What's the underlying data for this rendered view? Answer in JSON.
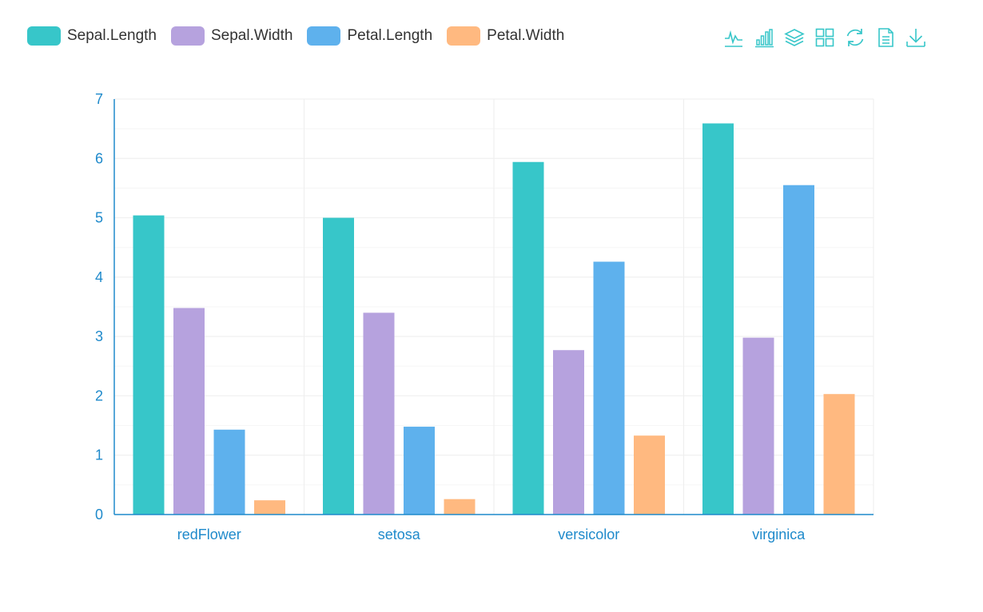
{
  "colors": {
    "axis": "#1f8acb",
    "grid": "#eeeeee",
    "gridMinor": "#f5f5f5",
    "toolbox": "#37c6c9",
    "legendText": "#333333"
  },
  "toolbox": [
    {
      "name": "line-chart-icon"
    },
    {
      "name": "bar-chart-icon"
    },
    {
      "name": "stack-icon"
    },
    {
      "name": "tiled-icon"
    },
    {
      "name": "restore-icon"
    },
    {
      "name": "data-view-icon"
    },
    {
      "name": "save-image-icon"
    }
  ],
  "chart_data": {
    "type": "bar",
    "categories": [
      "redFlower",
      "setosa",
      "versicolor",
      "virginica"
    ],
    "series": [
      {
        "name": "Sepal.Length",
        "color": "#37c6c9",
        "values": [
          5.04,
          5.0,
          5.94,
          6.59
        ]
      },
      {
        "name": "Sepal.Width",
        "color": "#b6a2de",
        "values": [
          3.48,
          3.4,
          2.77,
          2.98
        ]
      },
      {
        "name": "Petal.Length",
        "color": "#5eb1ed",
        "values": [
          1.43,
          1.48,
          4.26,
          5.55
        ]
      },
      {
        "name": "Petal.Width",
        "color": "#ffb980",
        "values": [
          0.24,
          0.26,
          1.33,
          2.03
        ]
      }
    ],
    "ylim": [
      0,
      7
    ],
    "yticks": [
      0,
      1,
      2,
      3,
      4,
      5,
      6,
      7
    ],
    "grid": true,
    "legend": "top-left"
  }
}
